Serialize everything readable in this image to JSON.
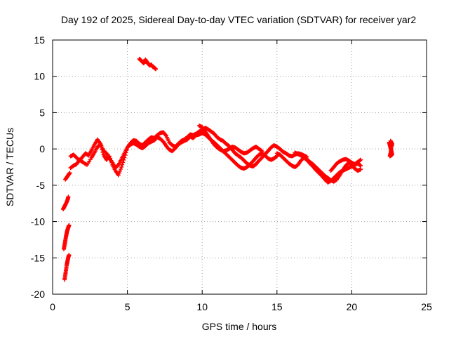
{
  "chart_data": {
    "type": "scatter",
    "title": "Day 192 of 2025, Sidereal Day-to-day VTEC variation (SDTVAR) for receiver yar2",
    "xlabel": "GPS time / hours",
    "ylabel": "SDTVAR / TECUs",
    "xlim": [
      0,
      25
    ],
    "ylim": [
      -20,
      15
    ],
    "xticks": [
      0,
      5,
      10,
      15,
      20,
      25
    ],
    "xtick_labels": [
      "0",
      "5",
      "10",
      "15",
      "20",
      "25"
    ],
    "yticks": [
      -20,
      -15,
      -10,
      -5,
      0,
      5,
      10,
      15
    ],
    "ytick_labels": [
      "-20",
      "-15",
      "-10",
      "-5",
      "0",
      "5",
      "10",
      "15"
    ],
    "grid": true,
    "marker": "+",
    "color": "#ff0000",
    "series": [
      {
        "name": "seg1",
        "x": [
          0.8,
          0.85,
          0.9,
          0.95,
          1.0,
          1.05,
          1.1
        ],
        "y": [
          -18.0,
          -17.3,
          -16.6,
          -15.9,
          -15.4,
          -14.9,
          -14.6
        ]
      },
      {
        "name": "seg2",
        "x": [
          0.75,
          0.8,
          0.85,
          0.9,
          0.95,
          1.0,
          1.05,
          1.1
        ],
        "y": [
          -13.8,
          -13.2,
          -12.6,
          -12.0,
          -11.5,
          -11.1,
          -10.8,
          -10.5
        ]
      },
      {
        "name": "seg3",
        "x": [
          0.7,
          0.8,
          0.9,
          1.0,
          1.05
        ],
        "y": [
          -8.3,
          -7.9,
          -7.5,
          -7.0,
          -6.6
        ]
      },
      {
        "name": "seg4",
        "x": [
          0.85,
          0.95,
          1.05,
          1.15
        ],
        "y": [
          -4.2,
          -3.9,
          -3.6,
          -3.3
        ]
      },
      {
        "name": "seg5",
        "x": [
          1.2,
          1.4,
          1.6,
          1.8,
          2.0,
          2.3,
          2.6,
          2.8,
          3.0,
          3.2,
          3.4,
          3.6,
          3.8,
          4.0,
          4.2,
          4.4,
          4.6,
          4.8,
          5.0,
          5.2,
          5.4,
          5.6,
          5.8,
          6.0,
          6.2,
          6.4,
          6.6,
          6.8,
          7.0,
          7.2,
          7.4,
          7.6,
          7.8,
          8.0,
          8.2,
          8.4,
          8.6,
          8.8,
          9.0,
          9.2,
          9.4,
          9.6,
          9.8,
          10.0,
          10.2,
          10.4,
          10.6,
          10.8,
          11.0,
          11.2,
          11.4,
          11.6,
          11.8,
          12.0,
          12.2,
          12.4,
          12.6,
          12.8,
          13.0,
          13.2,
          13.4,
          13.6,
          13.8,
          14.0,
          14.2,
          14.4,
          14.6,
          14.8,
          15.0,
          15.2,
          15.4,
          15.6,
          15.8,
          16.0,
          16.2,
          16.4,
          16.6,
          16.8,
          17.0
        ],
        "y": [
          -2.6,
          -2.3,
          -2.1,
          -1.5,
          -1.8,
          -2.2,
          -1.2,
          -0.5,
          0.3,
          0.6,
          -0.8,
          -1.5,
          -1.0,
          -2.2,
          -3.0,
          -3.6,
          -2.5,
          -1.2,
          0.2,
          0.8,
          1.2,
          1.1,
          0.7,
          0.5,
          0.9,
          1.3,
          1.6,
          1.5,
          1.9,
          2.2,
          2.3,
          1.8,
          0.9,
          0.5,
          0.3,
          0.7,
          1.1,
          1.3,
          1.6,
          2.0,
          1.9,
          2.1,
          2.4,
          2.6,
          2.9,
          2.7,
          2.4,
          2.1,
          1.6,
          1.3,
          1.1,
          0.7,
          0.4,
          -0.1,
          -0.6,
          -0.9,
          -1.2,
          -1.6,
          -2.0,
          -2.3,
          -2.4,
          -2.1,
          -1.6,
          -1.2,
          -0.7,
          -0.3,
          0.2,
          0.5,
          0.3,
          0.0,
          -0.4,
          -0.6,
          -0.9,
          -1.0,
          -0.8,
          -0.6,
          -0.7,
          -0.9,
          -1.1
        ]
      },
      {
        "name": "seg6",
        "x": [
          1.2,
          1.4,
          1.6,
          1.8,
          2.0,
          2.2,
          2.4,
          2.6,
          2.8,
          3.0,
          3.2,
          3.4,
          3.6,
          3.8,
          4.0,
          4.2,
          4.4,
          4.6,
          4.8,
          5.0,
          5.2,
          5.4,
          5.6,
          5.8,
          6.0,
          6.2,
          6.4,
          6.6,
          6.8,
          7.0,
          7.2,
          7.4,
          7.6,
          7.8,
          8.0,
          8.2,
          8.4,
          8.6,
          8.8,
          9.0,
          9.2,
          9.4,
          9.6,
          9.8,
          10.0,
          10.2,
          10.4,
          10.6,
          10.8,
          11.0,
          11.2,
          11.4,
          11.6,
          11.8,
          12.0,
          12.2,
          12.4,
          12.6,
          12.8,
          13.0,
          13.2,
          13.4,
          13.6,
          13.8,
          14.0,
          14.2,
          14.4,
          14.6,
          14.8,
          15.0
        ],
        "y": [
          -1.0,
          -0.8,
          -1.2,
          -1.6,
          -1.1,
          -0.6,
          -0.9,
          -0.2,
          0.6,
          1.3,
          0.7,
          -0.2,
          -0.6,
          -1.3,
          -1.9,
          -2.6,
          -2.2,
          -1.4,
          -0.6,
          0.2,
          0.6,
          0.8,
          0.6,
          0.3,
          0.1,
          0.4,
          0.8,
          1.0,
          1.2,
          1.6,
          1.4,
          1.0,
          0.4,
          -0.1,
          -0.3,
          0.1,
          0.6,
          0.9,
          1.1,
          1.3,
          1.7,
          1.5,
          1.9,
          2.0,
          2.2,
          2.0,
          1.6,
          1.2,
          0.9,
          0.5,
          0.1,
          -0.3,
          -0.7,
          -1.1,
          -1.5,
          -1.9,
          -2.3,
          -2.6,
          -2.7,
          -2.5,
          -2.1,
          -1.7,
          -1.2,
          -0.8,
          -0.6,
          -0.9,
          -1.3,
          -1.5,
          -1.3,
          -1.0
        ]
      },
      {
        "name": "seg7",
        "x": [
          9.8,
          10.0,
          10.2,
          10.4,
          10.6,
          10.8,
          11.0,
          11.2,
          11.4,
          11.6,
          11.8,
          12.0,
          12.2,
          12.4,
          12.6,
          12.8,
          13.0,
          13.2,
          13.4,
          13.6,
          13.8,
          14.0
        ],
        "y": [
          3.2,
          3.0,
          2.4,
          1.8,
          1.2,
          0.6,
          0.2,
          -0.1,
          -0.3,
          -0.2,
          0.0,
          0.3,
          0.2,
          -0.1,
          -0.4,
          -0.6,
          -0.5,
          -0.2,
          0.1,
          0.3,
          0.0,
          -0.3
        ]
      },
      {
        "name": "seg8",
        "x": [
          15.0,
          15.2,
          15.4,
          15.6,
          15.8,
          16.0,
          16.2,
          16.4,
          16.6,
          16.8,
          17.0,
          17.2,
          17.4,
          17.6,
          17.8,
          18.0,
          18.2,
          18.4,
          18.6,
          18.8,
          19.0,
          19.2,
          19.4,
          19.6,
          19.8,
          20.0,
          20.2,
          20.4,
          20.6
        ],
        "y": [
          -0.6,
          -0.8,
          -1.2,
          -1.6,
          -2.0,
          -2.3,
          -2.5,
          -2.2,
          -1.6,
          -1.2,
          -1.5,
          -2.0,
          -2.4,
          -2.9,
          -3.3,
          -3.7,
          -4.2,
          -4.6,
          -4.4,
          -4.0,
          -3.6,
          -3.2,
          -3.0,
          -2.8,
          -2.6,
          -2.4,
          -2.2,
          -2.0,
          -2.3
        ]
      },
      {
        "name": "seg9",
        "x": [
          16.2,
          16.4,
          16.6,
          16.8,
          17.0,
          17.2,
          17.4,
          17.6,
          17.8,
          18.0,
          18.2,
          18.4,
          18.6,
          18.8,
          19.0,
          19.2,
          19.4,
          19.6,
          19.8,
          20.0,
          20.2,
          20.4,
          20.6
        ],
        "y": [
          -0.5,
          -0.7,
          -0.9,
          -1.0,
          -1.4,
          -1.8,
          -2.1,
          -2.5,
          -2.9,
          -3.3,
          -3.7,
          -4.0,
          -4.3,
          -4.5,
          -4.2,
          -3.6,
          -2.9,
          -2.3,
          -1.9,
          -2.3,
          -2.7,
          -3.0,
          -2.8
        ]
      },
      {
        "name": "seg10",
        "x": [
          18.6,
          18.8,
          19.0,
          19.2,
          19.4,
          19.6,
          19.8,
          20.0,
          20.2,
          20.4,
          20.6
        ],
        "y": [
          -3.0,
          -2.5,
          -2.0,
          -1.7,
          -1.5,
          -1.4,
          -1.6,
          -1.9,
          -2.1,
          -1.8,
          -1.5
        ]
      },
      {
        "name": "seg11",
        "x": [
          5.8,
          5.9,
          6.0,
          6.1,
          6.2,
          6.3,
          6.4,
          6.5,
          6.6,
          6.7,
          6.8,
          6.9
        ],
        "y": [
          12.4,
          12.2,
          12.0,
          11.8,
          12.3,
          12.0,
          11.7,
          11.5,
          11.6,
          11.3,
          11.2,
          11.0
        ]
      },
      {
        "name": "seg12",
        "x": [
          22.5,
          22.55,
          22.6,
          22.65,
          22.7,
          22.55,
          22.6,
          22.65,
          22.7,
          22.6
        ],
        "y": [
          0.9,
          0.5,
          0.1,
          -0.3,
          -0.8,
          -1.0,
          -0.5,
          0.3,
          0.7,
          1.1
        ]
      }
    ]
  }
}
